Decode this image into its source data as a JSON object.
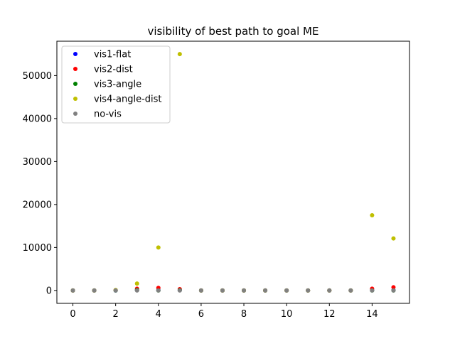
{
  "chart_data": {
    "type": "scatter",
    "title": "visibility of best path to goal ME",
    "xlabel": "",
    "ylabel": "",
    "xlim": [
      -0.75,
      15.75
    ],
    "ylim": [
      -3000,
      58000
    ],
    "x_ticks": [
      0,
      2,
      4,
      6,
      8,
      10,
      12,
      14
    ],
    "y_ticks": [
      0,
      10000,
      20000,
      30000,
      40000,
      50000
    ],
    "grid": false,
    "legend_position": "top-left",
    "series": [
      {
        "name": "vis1-flat",
        "color": "#0000ff",
        "x": [
          0,
          1,
          2,
          3,
          4,
          5,
          6,
          7,
          8,
          9,
          10,
          11,
          12,
          13,
          14,
          15
        ],
        "y": [
          0,
          0,
          0,
          100,
          50,
          50,
          0,
          0,
          0,
          0,
          0,
          0,
          0,
          0,
          50,
          50
        ]
      },
      {
        "name": "vis2-dist",
        "color": "#ff0000",
        "x": [
          0,
          1,
          2,
          3,
          4,
          5,
          6,
          7,
          8,
          9,
          10,
          11,
          12,
          13,
          14,
          15
        ],
        "y": [
          0,
          0,
          50,
          400,
          600,
          300,
          0,
          0,
          0,
          0,
          0,
          0,
          0,
          0,
          400,
          750
        ]
      },
      {
        "name": "vis3-angle",
        "color": "#008000",
        "x": [
          0,
          1,
          2,
          3,
          4,
          5,
          6,
          7,
          8,
          9,
          10,
          11,
          12,
          13,
          14,
          15
        ],
        "y": [
          0,
          0,
          0,
          100,
          0,
          50,
          0,
          0,
          0,
          0,
          0,
          0,
          0,
          0,
          0,
          0
        ]
      },
      {
        "name": "vis4-angle-dist",
        "color": "#bfbf00",
        "x": [
          0,
          1,
          2,
          3,
          4,
          5,
          6,
          7,
          8,
          9,
          10,
          11,
          12,
          13,
          14,
          15
        ],
        "y": [
          0,
          0,
          100,
          1600,
          10000,
          55000,
          0,
          0,
          0,
          0,
          0,
          0,
          0,
          0,
          17500,
          12100
        ]
      },
      {
        "name": "no-vis",
        "color": "#808080",
        "x": [
          0,
          1,
          2,
          3,
          4,
          5,
          6,
          7,
          8,
          9,
          10,
          11,
          12,
          13,
          14,
          15
        ],
        "y": [
          0,
          0,
          0,
          0,
          0,
          0,
          0,
          0,
          0,
          0,
          0,
          0,
          0,
          0,
          0,
          0
        ]
      }
    ]
  }
}
